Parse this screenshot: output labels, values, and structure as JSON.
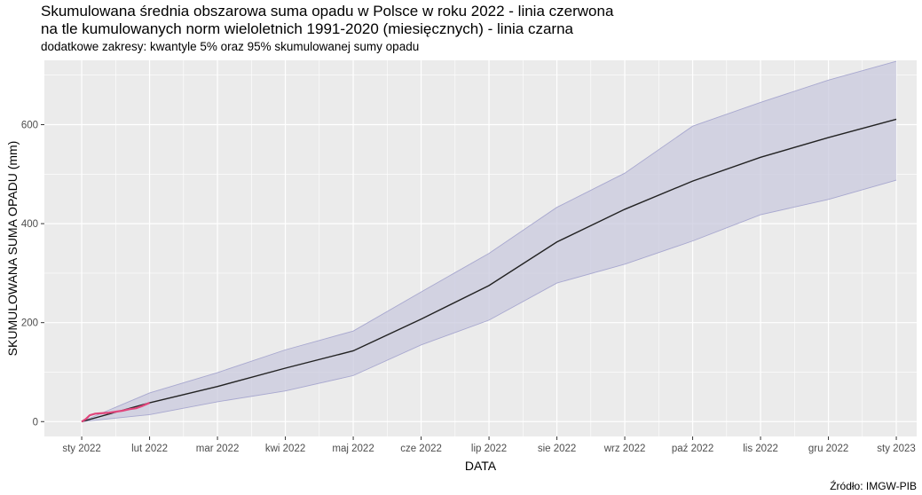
{
  "chart_data": {
    "type": "line",
    "title_line1": "Skumulowana średnia obszarowa suma opadu w Polsce w roku 2022 - linia czerwona",
    "title_line2": "na tle kumulowanych norm wieloletnich 1991-2020 (miesięcznych) - linia czarna",
    "subtitle": "dodatkowe zakresy: kwantyle 5% oraz 95% skumulowanej sumy opadu",
    "xlabel": "DATA",
    "ylabel": "SKUMULOWANA SUMA OPADU (mm)",
    "caption": "Źródło: IMGW-PIB",
    "x_tick_labels": [
      "sty 2022",
      "lut 2022",
      "mar 2022",
      "kwi 2022",
      "maj 2022",
      "cze 2022",
      "lip 2022",
      "sie 2022",
      "wrz 2022",
      "paź 2022",
      "lis 2022",
      "gru 2022",
      "sty 2023"
    ],
    "y_ticks": [
      0,
      200,
      400,
      600
    ],
    "ylim": [
      -30,
      730
    ],
    "xlim_months": [
      -0.55,
      12.3
    ],
    "grid": true,
    "colors": {
      "panel": "#ebebeb",
      "grid": "#ffffff",
      "band_fill": "#c9c9dd",
      "band_edge": "#a8a8cf",
      "norm_line": "#222222",
      "obs_line": "#e0457b"
    },
    "series": [
      {
        "name": "linia czarna",
        "x_months": [
          0,
          1,
          2,
          3,
          4,
          5,
          6,
          7,
          8,
          9,
          10,
          11,
          12
        ],
        "values": [
          0,
          38,
          71,
          108,
          143,
          207,
          275,
          363,
          429,
          486,
          534,
          574,
          611
        ]
      },
      {
        "name": "kwantyl 5%",
        "x_months": [
          0,
          1,
          2,
          3,
          4,
          5,
          6,
          7,
          8,
          9,
          10,
          11,
          12
        ],
        "values": [
          0,
          14,
          40,
          62,
          93,
          155,
          205,
          280,
          318,
          365,
          418,
          449,
          488
        ]
      },
      {
        "name": "kwantyl 95%",
        "x_months": [
          0,
          1,
          2,
          3,
          4,
          5,
          6,
          7,
          8,
          9,
          10,
          11,
          12
        ],
        "values": [
          0,
          58,
          99,
          145,
          183,
          262,
          340,
          433,
          502,
          597,
          645,
          690,
          728
        ]
      },
      {
        "name": "linia czerwona",
        "x_months": [
          0,
          0.06,
          0.12,
          0.2,
          0.3,
          0.4,
          0.5,
          0.6,
          0.7,
          0.8,
          0.9,
          1.0
        ],
        "values": [
          0,
          5,
          13,
          16,
          17,
          18,
          20,
          22,
          25,
          27,
          32,
          38
        ]
      }
    ]
  }
}
